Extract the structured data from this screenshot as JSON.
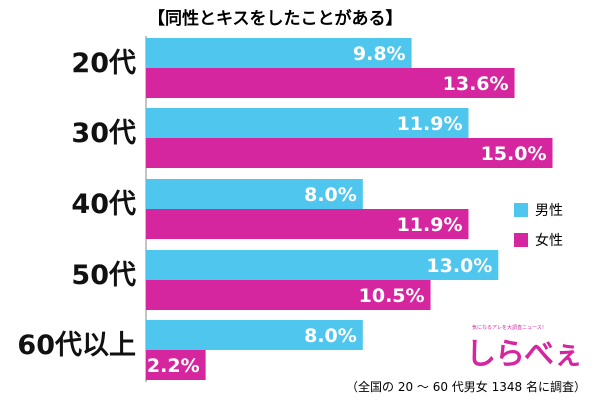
{
  "chart_data": {
    "type": "bar",
    "orientation": "horizontal",
    "title": "【同性とキスをしたことがある】",
    "categories": [
      "20代",
      "30代",
      "40代",
      "50代",
      "60代以上"
    ],
    "series": [
      {
        "name": "男性",
        "color": "#4fc6ee",
        "values": [
          9.8,
          11.9,
          8.0,
          13.0,
          8.0
        ],
        "labels": [
          "9.8%",
          "11.9%",
          "8.0%",
          "13.0%",
          "8.0%"
        ]
      },
      {
        "name": "女性",
        "color": "#d6269f",
        "values": [
          13.6,
          15.0,
          11.9,
          10.5,
          2.2
        ],
        "labels": [
          "13.6%",
          "15.0%",
          "11.9%",
          "10.5%",
          "2.2%"
        ]
      }
    ],
    "xlim": [
      0,
      20
    ],
    "grid": false,
    "legend_position": "right"
  },
  "logo": {
    "tagline": "気になるアレを大調査ニュース！",
    "text": "しらべぇ"
  },
  "footnote": "（全国の 20 ～ 60 代男女 1348 名に調査）"
}
